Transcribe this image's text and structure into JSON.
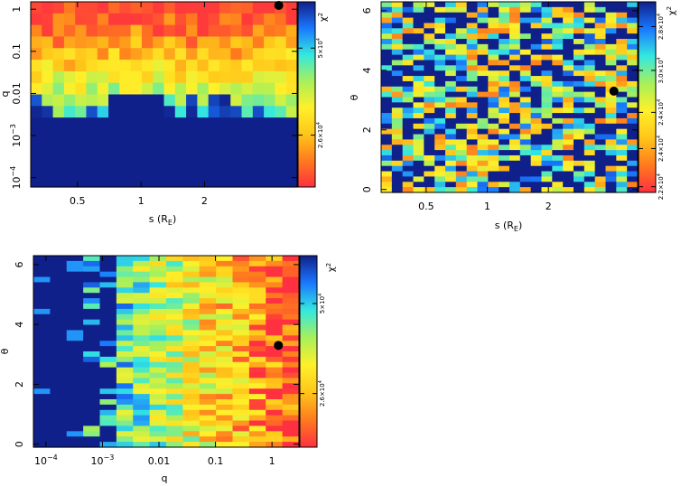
{
  "colormap": {
    "name": "jet_reversed",
    "stops": [
      "#ff3040",
      "#ff7a1e",
      "#ffc61a",
      "#fff02a",
      "#a8f05a",
      "#34e8e0",
      "#1a78ff",
      "#10208a"
    ]
  },
  "marker_color": "#000000",
  "chart_data": [
    {
      "type": "heatmap",
      "id": "s-q",
      "xlabel_main": "s (R",
      "xlabel_sub": "E",
      "xlabel_close": ")",
      "ylabel": "q",
      "xscale": "log",
      "yscale": "log",
      "xlim": [
        0.3,
        5.5
      ],
      "ylim": [
        6e-05,
        1.5
      ],
      "xticks": [
        0.5,
        1,
        2
      ],
      "xticklabels": [
        "0.5",
        "1",
        "2"
      ],
      "yticks": [
        1,
        0.1,
        0.01,
        0.001,
        0.0001
      ],
      "yticklabels": [
        {
          "base": "1",
          "exp": ""
        },
        {
          "base": "0.1",
          "exp": ""
        },
        {
          "base": "0.01",
          "exp": ""
        },
        {
          "base": "10",
          "exp": "−3"
        },
        {
          "base": "10",
          "exp": "−4"
        }
      ],
      "nx": 24,
      "ny": 16,
      "best_fit": {
        "s": 4.5,
        "q": 1.3
      },
      "colorbar": {
        "label": "χ",
        "label_exp": "2",
        "ticks": [
          {
            "value": 0.25,
            "mant": "5×10",
            "exp": "4"
          },
          {
            "value": 0.72,
            "mant": "2.6×10",
            "exp": "4"
          }
        ]
      }
    },
    {
      "type": "heatmap",
      "id": "s-theta",
      "xlabel_main": "s (R",
      "xlabel_sub": "E",
      "xlabel_close": ")",
      "ylabel": "θ",
      "xscale": "log",
      "yscale": "linear",
      "xlim": [
        0.3,
        5.5
      ],
      "ylim": [
        -0.1,
        6.3
      ],
      "xticks": [
        0.5,
        1,
        2
      ],
      "xticklabels": [
        "0.5",
        "1",
        "2"
      ],
      "yticks": [
        0,
        2,
        4,
        6
      ],
      "yticklabels": [
        "0",
        "2",
        "4",
        "6"
      ],
      "nx": 24,
      "ny": 36,
      "best_fit": {
        "s": 4.2,
        "theta": 3.3
      },
      "colorbar": {
        "label": "χ",
        "label_exp": "2",
        "ticks": [
          {
            "value": 0.13,
            "mant": "2.8×10",
            "exp": "4"
          },
          {
            "value": 0.36,
            "mant": "3.0×10",
            "exp": "4"
          },
          {
            "value": 0.58,
            "mant": "2.4×10",
            "exp": "4"
          },
          {
            "value": 0.77,
            "mant": "2.4×10",
            "exp": "4"
          },
          {
            "value": 0.97,
            "mant": "2.2×10",
            "exp": "4"
          }
        ]
      }
    },
    {
      "type": "heatmap",
      "id": "q-theta",
      "xlabel_main": "q",
      "xlabel_sub": "",
      "xlabel_close": "",
      "ylabel": "θ",
      "xscale": "log",
      "yscale": "linear",
      "xlim": [
        6e-05,
        3
      ],
      "ylim": [
        -0.1,
        6.3
      ],
      "xticks": [
        0.0001,
        0.001,
        0.01,
        0.1,
        1
      ],
      "xticklabels": [
        {
          "base": "10",
          "exp": "−4"
        },
        {
          "base": "10",
          "exp": "−3"
        },
        {
          "base": "0.01",
          "exp": ""
        },
        {
          "base": "0.1",
          "exp": ""
        },
        {
          "base": "1",
          "exp": ""
        }
      ],
      "yticks": [
        0,
        2,
        4,
        6
      ],
      "yticklabels": [
        "0",
        "2",
        "4",
        "6"
      ],
      "nx": 16,
      "ny": 36,
      "best_fit": {
        "q": 1.3,
        "theta": 3.3
      },
      "colorbar": {
        "label": "χ",
        "label_exp": "2",
        "ticks": [
          {
            "value": 0.25,
            "mant": "5×10",
            "exp": "4"
          },
          {
            "value": 0.72,
            "mant": "2.6×10",
            "exp": "4"
          }
        ]
      }
    }
  ]
}
